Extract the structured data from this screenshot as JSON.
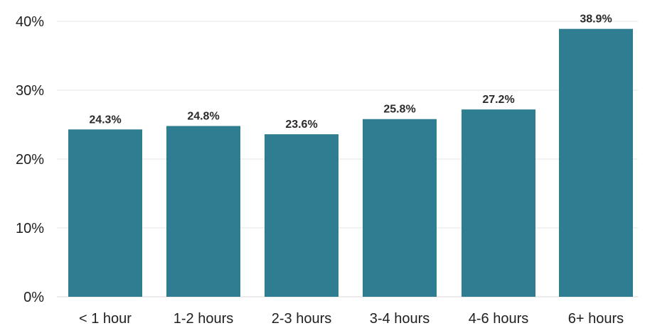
{
  "chart_data": {
    "type": "bar",
    "title": "",
    "xlabel": "",
    "ylabel": "",
    "categories": [
      "< 1 hour",
      "1-2 hours",
      "2-3 hours",
      "3-4 hours",
      "4-6 hours",
      "6+ hours"
    ],
    "values": [
      24.3,
      24.8,
      23.6,
      25.8,
      27.2,
      38.9
    ],
    "data_labels": [
      "24.3%",
      "24.8%",
      "23.6%",
      "25.8%",
      "27.2%",
      "38.9%"
    ],
    "ylim": [
      0,
      40
    ],
    "yticks": [
      {
        "value": 0,
        "label": "0%"
      },
      {
        "value": 10,
        "label": "10%"
      },
      {
        "value": 20,
        "label": "20%"
      },
      {
        "value": 30,
        "label": "30%"
      },
      {
        "value": 40,
        "label": "40%"
      }
    ],
    "grid": true,
    "legend": "none",
    "bar_color": "#2f7d91"
  }
}
